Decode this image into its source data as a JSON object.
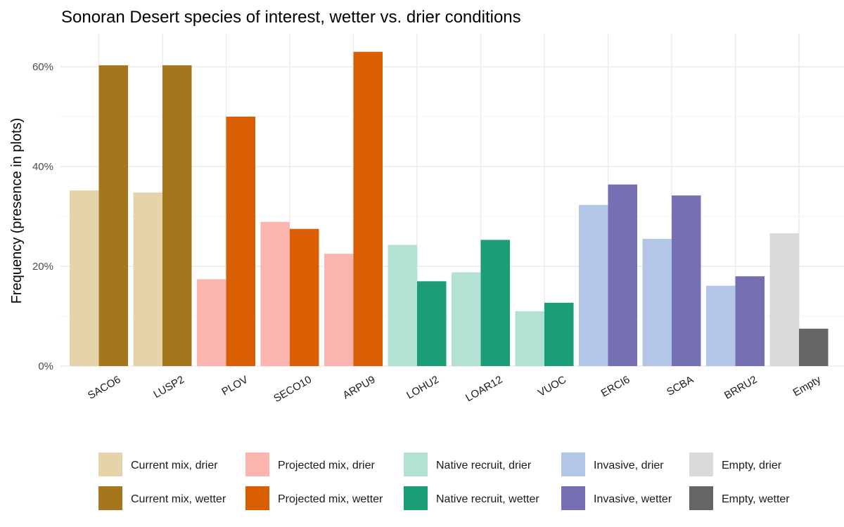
{
  "chart_data": {
    "type": "bar",
    "title": "Sonoran Desert species of interest, wetter vs. drier conditions",
    "xlabel": "",
    "ylabel": "Frequency (presence in plots)",
    "ylim": [
      0,
      0.65
    ],
    "yticks": [
      0,
      0.2,
      0.4,
      0.6
    ],
    "ytick_labels": [
      "0%",
      "20%",
      "40%",
      "60%"
    ],
    "grid": true,
    "legend_position": "bottom",
    "categories": [
      "SACO6",
      "LUSP2",
      "PLOV",
      "SECO10",
      "ARPU9",
      "LOHU2",
      "LOAR12",
      "VUOC",
      "ERCI6",
      "SCBA",
      "BRRU2",
      "Empty"
    ],
    "groups": [
      {
        "category": "SACO6",
        "drier": 0.352,
        "wetter": 0.603,
        "drier_series": "Current mix, drier",
        "wetter_series": "Current mix, wetter"
      },
      {
        "category": "LUSP2",
        "drier": 0.348,
        "wetter": 0.603,
        "drier_series": "Current mix, drier",
        "wetter_series": "Current mix, wetter"
      },
      {
        "category": "PLOV",
        "drier": 0.174,
        "wetter": 0.5,
        "drier_series": "Projected mix, drier",
        "wetter_series": "Projected mix, wetter"
      },
      {
        "category": "SECO10",
        "drier": 0.289,
        "wetter": 0.275,
        "drier_series": "Projected mix, drier",
        "wetter_series": "Projected mix, wetter"
      },
      {
        "category": "ARPU9",
        "drier": 0.225,
        "wetter": 0.63,
        "drier_series": "Projected mix, drier",
        "wetter_series": "Projected mix, wetter"
      },
      {
        "category": "LOHU2",
        "drier": 0.243,
        "wetter": 0.17,
        "drier_series": "Native recruit, drier",
        "wetter_series": "Native recruit, wetter"
      },
      {
        "category": "LOAR12",
        "drier": 0.188,
        "wetter": 0.253,
        "drier_series": "Native recruit, drier",
        "wetter_series": "Native recruit, wetter"
      },
      {
        "category": "VUOC",
        "drier": 0.11,
        "wetter": 0.127,
        "drier_series": "Native recruit, drier",
        "wetter_series": "Native recruit, wetter"
      },
      {
        "category": "ERCI6",
        "drier": 0.323,
        "wetter": 0.364,
        "drier_series": "Invasive, drier",
        "wetter_series": "Invasive, wetter"
      },
      {
        "category": "SCBA",
        "drier": 0.255,
        "wetter": 0.342,
        "drier_series": "Invasive, drier",
        "wetter_series": "Invasive, wetter"
      },
      {
        "category": "BRRU2",
        "drier": 0.161,
        "wetter": 0.18,
        "drier_series": "Invasive, drier",
        "wetter_series": "Invasive, wetter"
      },
      {
        "category": "Empty",
        "drier": 0.266,
        "wetter": 0.075,
        "drier_series": "Empty, drier",
        "wetter_series": "Empty, wetter"
      }
    ],
    "series": [
      {
        "name": "Current mix, drier",
        "color": "#e5d4a9"
      },
      {
        "name": "Current mix, wetter",
        "color": "#a6761d"
      },
      {
        "name": "Projected mix, drier",
        "color": "#fbb4ae"
      },
      {
        "name": "Projected mix, wetter",
        "color": "#d95f02"
      },
      {
        "name": "Native recruit, drier",
        "color": "#b3e2d5"
      },
      {
        "name": "Native recruit, wetter",
        "color": "#1b9e77"
      },
      {
        "name": "Invasive, drier",
        "color": "#b3c6e7"
      },
      {
        "name": "Invasive, wetter",
        "color": "#7570b3"
      },
      {
        "name": "Empty, drier",
        "color": "#d9d9d9"
      },
      {
        "name": "Empty, wetter",
        "color": "#666666"
      }
    ]
  }
}
